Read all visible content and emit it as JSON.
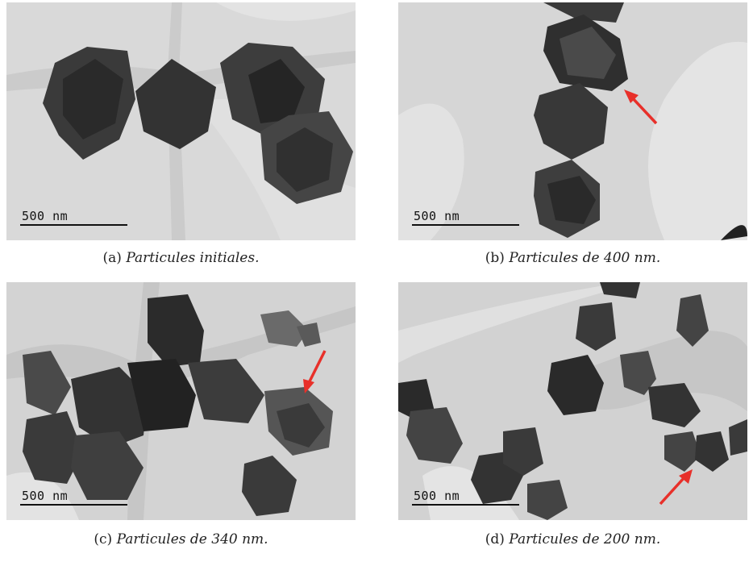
{
  "panels": [
    {
      "id": "a",
      "label": "(a)",
      "caption": "Particules initiales.",
      "scalebar": "500 nm",
      "has_arrow": false
    },
    {
      "id": "b",
      "label": "(b)",
      "caption": "Particules de 400 nm.",
      "scalebar": "500 nm",
      "has_arrow": true
    },
    {
      "id": "c",
      "label": "(c)",
      "caption": "Particules de 340 nm.",
      "scalebar": "500 nm",
      "has_arrow": true
    },
    {
      "id": "d",
      "label": "(d)",
      "caption": "Particules de 200 nm.",
      "scalebar": "500 nm",
      "has_arrow": true
    }
  ],
  "colors": {
    "background": "#d7d7d7",
    "grid": "#c9c9c9",
    "particle_dark": "#2a2a2a",
    "particle_mid": "#4a4a4a",
    "particle_light": "#6a6a6a",
    "arrow": "#e8302a"
  }
}
